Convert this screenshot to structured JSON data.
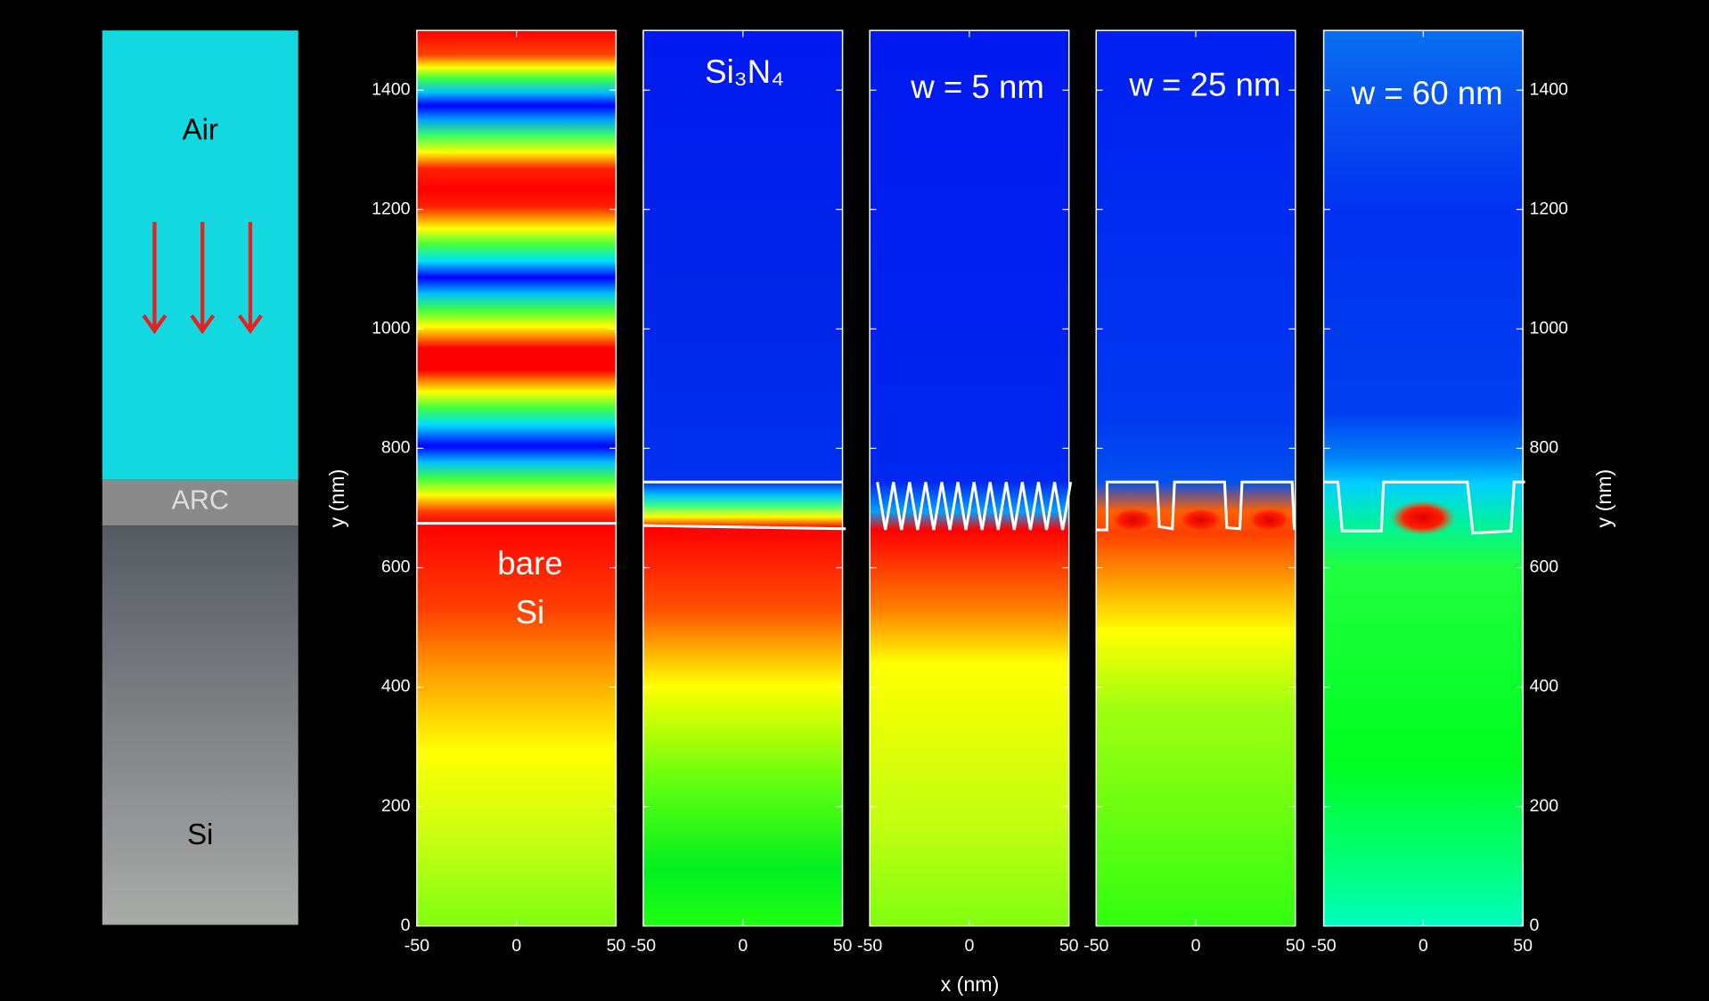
{
  "chart_data": {
    "type": "heatmap",
    "x_label": "x (nm)",
    "y_label": "y (nm)",
    "xlim": [
      -50,
      50
    ],
    "ylim": [
      0,
      1500
    ],
    "xticks": [
      -50,
      0,
      50
    ],
    "yticks": [
      0,
      200,
      400,
      600,
      800,
      1000,
      1200,
      1400
    ],
    "panels": [
      {
        "label": [
          "bare",
          "Si"
        ]
      },
      {
        "label": [
          "Si₃N₄"
        ]
      },
      {
        "label": [
          "w = 5 nm"
        ]
      },
      {
        "label": [
          "w = 25 nm"
        ]
      },
      {
        "label": [
          "w = 60 nm"
        ]
      }
    ]
  },
  "schematic": {
    "air": "Air",
    "arc": "ARC",
    "substrate": "Si"
  }
}
